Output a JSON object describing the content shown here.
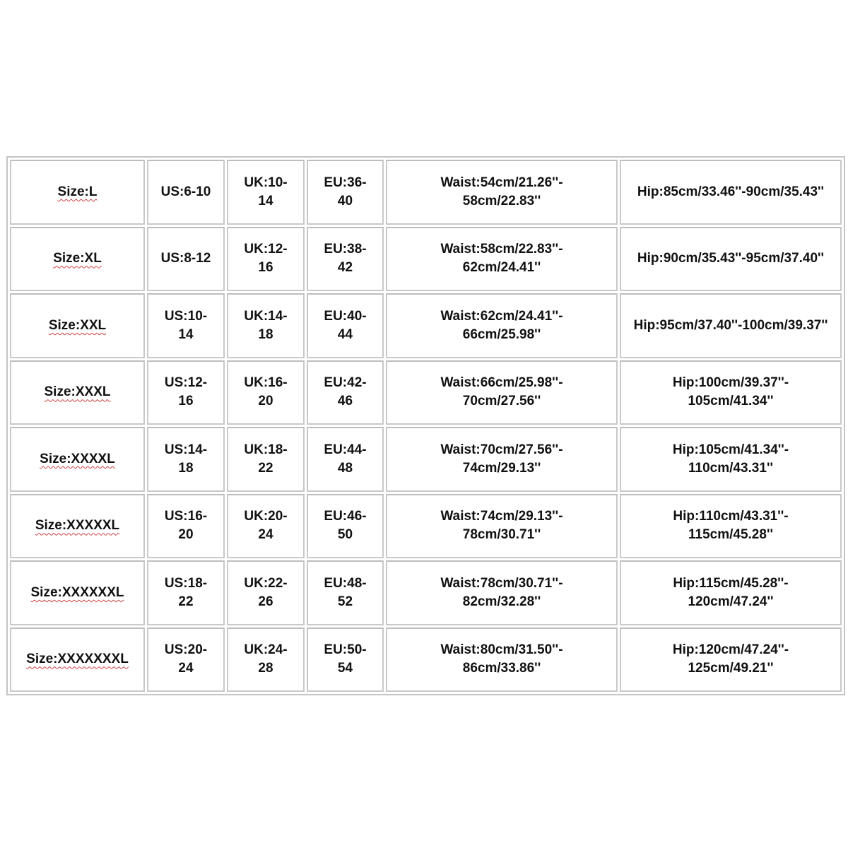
{
  "rows": [
    {
      "size": "Size:L",
      "us": "US:6-10",
      "uk": "UK:10-\n14",
      "eu": "EU:36-\n40",
      "waist": "Waist:54cm/21.26''-\n58cm/22.83''",
      "hip": "Hip:85cm/33.46''-90cm/35.43''"
    },
    {
      "size": "Size:XL",
      "us": "US:8-12",
      "uk": "UK:12-\n16",
      "eu": "EU:38-\n42",
      "waist": "Waist:58cm/22.83''-\n62cm/24.41''",
      "hip": "Hip:90cm/35.43''-95cm/37.40''"
    },
    {
      "size": "Size:XXL",
      "us": "US:10-\n14",
      "uk": "UK:14-\n18",
      "eu": "EU:40-\n44",
      "waist": "Waist:62cm/24.41''-\n66cm/25.98''",
      "hip": "Hip:95cm/37.40''-100cm/39.37''"
    },
    {
      "size": "Size:XXXL",
      "us": "US:12-\n16",
      "uk": "UK:16-\n20",
      "eu": "EU:42-\n46",
      "waist": "Waist:66cm/25.98''-\n70cm/27.56''",
      "hip": "Hip:100cm/39.37''-\n105cm/41.34''"
    },
    {
      "size": "Size:XXXXL",
      "us": "US:14-\n18",
      "uk": "UK:18-\n22",
      "eu": "EU:44-\n48",
      "waist": "Waist:70cm/27.56''-\n74cm/29.13''",
      "hip": "Hip:105cm/41.34''-\n110cm/43.31''"
    },
    {
      "size": "Size:XXXXXL",
      "us": "US:16-\n20",
      "uk": "UK:20-\n24",
      "eu": "EU:46-\n50",
      "waist": "Waist:74cm/29.13''-\n78cm/30.71''",
      "hip": "Hip:110cm/43.31''-\n115cm/45.28''"
    },
    {
      "size": "Size:XXXXXXL",
      "us": "US:18-\n22",
      "uk": "UK:22-\n26",
      "eu": "EU:48-\n52",
      "waist": "Waist:78cm/30.71''-\n82cm/32.28''",
      "hip": "Hip:115cm/45.28''-\n120cm/47.24''"
    },
    {
      "size": "Size:XXXXXXXL",
      "us": "US:20-\n24",
      "uk": "UK:24-\n28",
      "eu": "EU:50-\n54",
      "waist": "Waist:80cm/31.50''-\n86cm/33.86''",
      "hip": "Hip:120cm/47.24''-\n125cm/49.21''"
    }
  ]
}
